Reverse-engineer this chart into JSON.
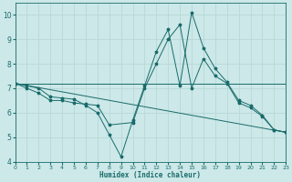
{
  "xlabel": "Humidex (Indice chaleur)",
  "xlim": [
    0,
    23
  ],
  "ylim": [
    4,
    10.5
  ],
  "xticks": [
    0,
    1,
    2,
    3,
    4,
    5,
    6,
    7,
    8,
    9,
    10,
    11,
    12,
    13,
    14,
    15,
    16,
    17,
    18,
    19,
    20,
    21,
    22,
    23
  ],
  "yticks": [
    4,
    5,
    6,
    7,
    8,
    9,
    10
  ],
  "bg_color": "#cce8e8",
  "line_color": "#1a6b6b",
  "grid_color": "#b8d8d8",
  "line1_x": [
    0,
    1,
    2,
    3,
    4,
    5,
    6,
    7,
    8,
    9,
    10,
    11,
    12,
    13,
    14,
    15,
    16,
    17,
    18,
    19,
    20,
    21,
    22,
    23
  ],
  "line1_y": [
    7.2,
    7.1,
    7.0,
    6.65,
    6.6,
    6.55,
    6.3,
    6.0,
    5.1,
    4.2,
    5.7,
    7.1,
    8.5,
    9.4,
    7.1,
    10.1,
    8.65,
    7.8,
    7.25,
    6.5,
    6.3,
    5.9,
    5.3,
    5.2
  ],
  "line2_x": [
    0,
    1,
    2,
    3,
    4,
    5,
    6,
    7,
    8,
    10,
    11,
    12,
    13,
    14,
    15,
    16,
    17,
    18,
    19,
    20,
    21,
    22,
    23
  ],
  "line2_y": [
    7.2,
    7.0,
    6.8,
    6.5,
    6.5,
    6.4,
    6.35,
    6.3,
    5.5,
    5.6,
    7.0,
    8.0,
    9.0,
    9.6,
    7.0,
    8.2,
    7.5,
    7.2,
    6.4,
    6.2,
    5.85,
    5.3,
    5.2
  ],
  "line3_x": [
    0,
    23
  ],
  "line3_y": [
    7.2,
    7.2
  ],
  "line4_x": [
    0,
    23
  ],
  "line4_y": [
    7.2,
    5.2
  ]
}
